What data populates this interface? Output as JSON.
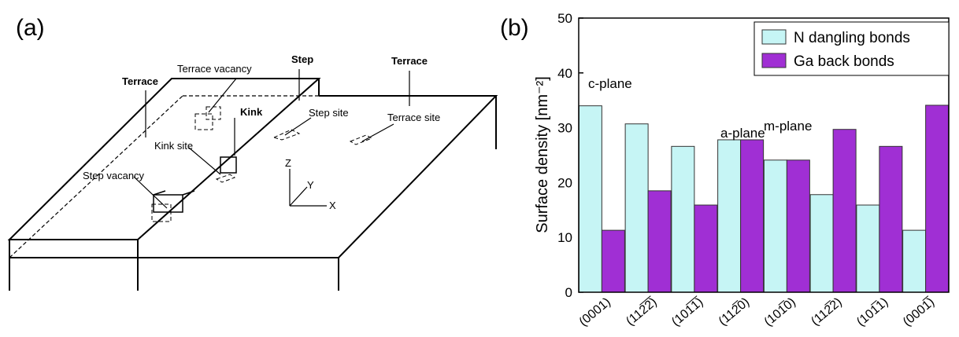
{
  "diagram": {
    "panel_label": "(a)",
    "labels": [
      "Terrace",
      "Terrace vacancy",
      "Step",
      "Terrace",
      "Kink",
      "Step site",
      "Terrace site",
      "Kink site",
      "Step vacancy",
      "Z",
      "Y",
      "X"
    ]
  },
  "chart_data": {
    "type": "bar",
    "panel_label": "(b)",
    "y_label": "Surface density [nm⁻²]",
    "categories": [
      "(0001)",
      "(112̅2̅)",
      "(101̅1̅)",
      "(112̅0)",
      "(101̅0)",
      "(112̅2)",
      "(101̅1)",
      "(0001̅)"
    ],
    "series": [
      {
        "name": "N dangling bonds",
        "color": "#c6f5f5",
        "values": [
          34,
          30.7,
          26.6,
          27.8,
          24.1,
          17.8,
          15.9,
          11.3
        ]
      },
      {
        "name": "Ga back bonds",
        "color": "#a02fd4",
        "values": [
          11.3,
          18.5,
          15.9,
          27.8,
          24.1,
          29.7,
          26.6,
          34.1
        ]
      }
    ],
    "ylim": [
      0,
      50
    ],
    "yticks": [
      0,
      10,
      20,
      30,
      40,
      50
    ],
    "legend": "upper right",
    "annotations": [
      "c-plane",
      "a-plane",
      "m-plane"
    ]
  }
}
